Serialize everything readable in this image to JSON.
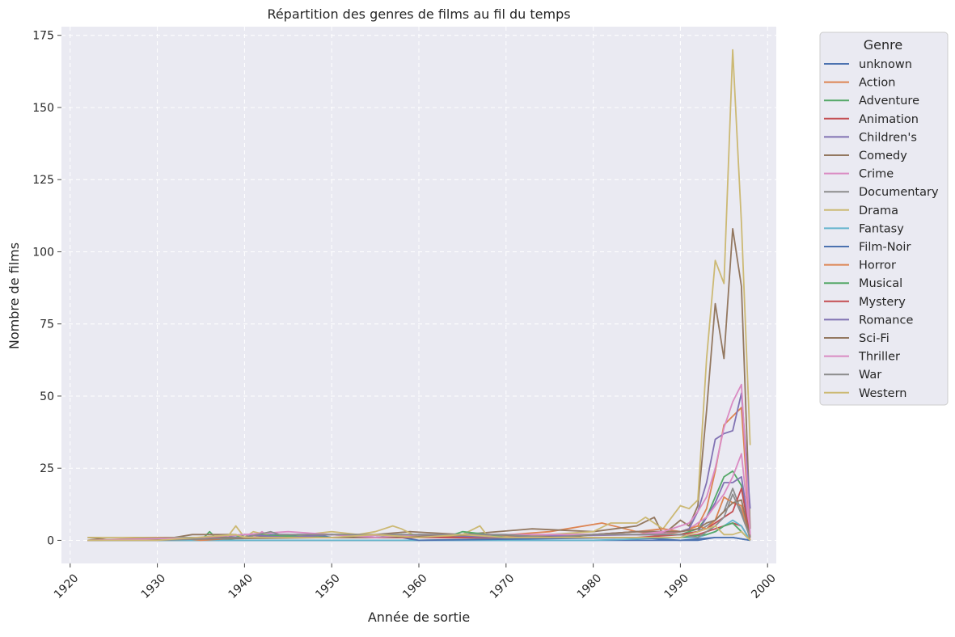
{
  "chart_data": {
    "type": "line",
    "title": "Répartition des genres de films au fil du temps",
    "xlabel": "Année de sortie",
    "ylabel": "Nombre de films",
    "xlim": [
      1919,
      2001
    ],
    "ylim": [
      -8,
      178
    ],
    "x_ticks": [
      1920,
      1930,
      1940,
      1950,
      1960,
      1970,
      1980,
      1990,
      2000
    ],
    "y_ticks": [
      0,
      25,
      50,
      75,
      100,
      125,
      150,
      175
    ],
    "x_tick_rotation": 45,
    "grid": true,
    "grid_style": "dashed",
    "background": "#EAEAF2",
    "legend_title": "Genre",
    "legend_position": "outside-upper-right",
    "series": [
      {
        "name": "unknown",
        "color": "#4C72B0",
        "x": [
          1922,
          1990,
          1992,
          1994,
          1996,
          1998
        ],
        "y": [
          0,
          0,
          0,
          1,
          1,
          0
        ]
      },
      {
        "name": "Action",
        "color": "#DD8452",
        "x": [
          1922,
          1940,
          1950,
          1957,
          1966,
          1975,
          1981,
          1985,
          1988,
          1990,
          1991,
          1992,
          1993,
          1994,
          1995,
          1996,
          1997,
          1998
        ],
        "y": [
          0,
          1,
          1,
          1,
          1,
          3,
          6,
          3,
          2,
          3,
          4,
          5,
          11,
          24,
          40,
          43,
          46,
          1
        ]
      },
      {
        "name": "Adventure",
        "color": "#55A868",
        "x": [
          1922,
          1935,
          1936,
          1937,
          1940,
          1955,
          1977,
          1985,
          1988,
          1990,
          1991,
          1992,
          1993,
          1994,
          1995,
          1996,
          1997,
          1998
        ],
        "y": [
          0,
          0,
          3,
          0,
          1,
          1,
          2,
          2,
          2,
          2,
          3,
          4,
          8,
          15,
          22,
          24,
          19,
          1
        ]
      },
      {
        "name": "Animation",
        "color": "#C44E52",
        "x": [
          1922,
          1937,
          1940,
          1950,
          1955,
          1967,
          1985,
          1990,
          1992,
          1993,
          1994,
          1995,
          1996,
          1997,
          1998
        ],
        "y": [
          0,
          1,
          1,
          1,
          1,
          1,
          1,
          1,
          2,
          3,
          4,
          5,
          6,
          5,
          0
        ]
      },
      {
        "name": "Children's",
        "color": "#8172B3",
        "x": [
          1922,
          1937,
          1940,
          1945,
          1950,
          1964,
          1986,
          1990,
          1992,
          1993,
          1994,
          1995,
          1996,
          1997,
          1998
        ],
        "y": [
          0,
          1,
          2,
          2,
          1,
          1,
          2,
          2,
          3,
          8,
          13,
          20,
          20,
          22,
          2
        ]
      },
      {
        "name": "Comedy",
        "color": "#937860",
        "x": [
          1922,
          1925,
          1930,
          1934,
          1936,
          1939,
          1940,
          1950,
          1955,
          1959,
          1965,
          1973,
          1980,
          1985,
          1987,
          1988,
          1990,
          1991,
          1992,
          1993,
          1994,
          1995,
          1996,
          1997,
          1998
        ],
        "y": [
          1,
          0,
          0,
          2,
          2,
          2,
          1,
          2,
          2,
          3,
          2,
          4,
          3,
          5,
          8,
          2,
          7,
          5,
          12,
          45,
          82,
          63,
          108,
          88,
          4
        ]
      },
      {
        "name": "Crime",
        "color": "#DA8BC3",
        "x": [
          1922,
          1941,
          1942,
          1943,
          1950,
          1957,
          1961,
          1975,
          1985,
          1990,
          1991,
          1992,
          1993,
          1994,
          1995,
          1996,
          1997,
          1998
        ],
        "y": [
          0,
          1,
          3,
          1,
          1,
          2,
          1,
          2,
          2,
          3,
          4,
          6,
          8,
          12,
          16,
          22,
          30,
          1
        ]
      },
      {
        "name": "Documentary",
        "color": "#8C8C8C",
        "x": [
          1922,
          1960,
          1975,
          1985,
          1990,
          1992,
          1993,
          1994,
          1995,
          1996,
          1997,
          1998
        ],
        "y": [
          0,
          0,
          1,
          1,
          1,
          3,
          5,
          7,
          10,
          18,
          10,
          1
        ]
      },
      {
        "name": "Drama",
        "color": "#CCB974",
        "x": [
          1922,
          1925,
          1930,
          1937,
          1938,
          1939,
          1940,
          1941,
          1944,
          1950,
          1953,
          1955,
          1957,
          1958,
          1960,
          1965,
          1967,
          1968,
          1975,
          1980,
          1982,
          1985,
          1986,
          1988,
          1989,
          1990,
          1991,
          1992,
          1993,
          1994,
          1995,
          1996,
          1997,
          1998
        ],
        "y": [
          1,
          1,
          1,
          1,
          1,
          5,
          1,
          3,
          1,
          3,
          2,
          3,
          5,
          4,
          1,
          2,
          5,
          1,
          2,
          3,
          6,
          6,
          8,
          4,
          8,
          12,
          11,
          14,
          63,
          97,
          89,
          170,
          110,
          33
        ]
      },
      {
        "name": "Fantasy",
        "color": "#64B5CD",
        "x": [
          1922,
          1940,
          1960,
          1980,
          1990,
          1992,
          1993,
          1994,
          1995,
          1996,
          1997,
          1998
        ],
        "y": [
          0,
          0,
          0,
          0,
          1,
          1,
          2,
          3,
          5,
          7,
          5,
          0
        ]
      },
      {
        "name": "Film-Noir",
        "color": "#4C72B0",
        "x": [
          1922,
          1940,
          1944,
          1946,
          1948,
          1950,
          1955,
          1958,
          1960,
          1985,
          1990,
          1994,
          1996,
          1998
        ],
        "y": [
          0,
          1,
          1,
          2,
          2,
          1,
          1,
          1,
          0,
          1,
          0,
          1,
          1,
          0
        ]
      },
      {
        "name": "Horror",
        "color": "#DD8452",
        "x": [
          1922,
          1931,
          1932,
          1935,
          1940,
          1960,
          1968,
          1975,
          1980,
          1985,
          1988,
          1990,
          1992,
          1993,
          1994,
          1995,
          1996,
          1997,
          1998
        ],
        "y": [
          0,
          1,
          1,
          0,
          1,
          1,
          2,
          1,
          2,
          3,
          4,
          3,
          5,
          4,
          7,
          15,
          13,
          12,
          0
        ]
      },
      {
        "name": "Musical",
        "color": "#55A868",
        "x": [
          1922,
          1933,
          1936,
          1939,
          1940,
          1950,
          1955,
          1958,
          1960,
          1964,
          1965,
          1968,
          1970,
          1985,
          1990,
          1993,
          1994,
          1995,
          1996,
          1997,
          1998
        ],
        "y": [
          0,
          1,
          1,
          1,
          2,
          1,
          1,
          2,
          1,
          2,
          3,
          2,
          1,
          1,
          1,
          2,
          3,
          5,
          6,
          3,
          0
        ]
      },
      {
        "name": "Mystery",
        "color": "#C44E52",
        "x": [
          1922,
          1940,
          1950,
          1960,
          1975,
          1985,
          1990,
          1992,
          1993,
          1994,
          1995,
          1996,
          1997,
          1998
        ],
        "y": [
          0,
          1,
          1,
          1,
          1,
          1,
          2,
          3,
          4,
          6,
          8,
          10,
          18,
          1
        ]
      },
      {
        "name": "Romance",
        "color": "#8172B3",
        "x": [
          1922,
          1930,
          1935,
          1940,
          1945,
          1950,
          1955,
          1960,
          1970,
          1980,
          1985,
          1990,
          1991,
          1992,
          1993,
          1994,
          1995,
          1996,
          1997,
          1998
        ],
        "y": [
          0,
          0,
          1,
          2,
          1,
          2,
          1,
          2,
          1,
          2,
          3,
          3,
          4,
          10,
          20,
          35,
          37,
          38,
          51,
          11
        ]
      },
      {
        "name": "Sci-Fi",
        "color": "#937860",
        "x": [
          1922,
          1950,
          1955,
          1968,
          1977,
          1980,
          1985,
          1990,
          1992,
          1993,
          1994,
          1995,
          1996,
          1997,
          1998
        ],
        "y": [
          0,
          1,
          1,
          2,
          1,
          2,
          3,
          3,
          4,
          6,
          7,
          10,
          13,
          14,
          1
        ]
      },
      {
        "name": "Thriller",
        "color": "#DA8BC3",
        "x": [
          1922,
          1935,
          1940,
          1945,
          1950,
          1955,
          1960,
          1970,
          1980,
          1985,
          1988,
          1990,
          1991,
          1992,
          1993,
          1994,
          1995,
          1996,
          1997,
          1998
        ],
        "y": [
          0,
          1,
          2,
          3,
          2,
          1,
          2,
          2,
          2,
          2,
          3,
          5,
          6,
          10,
          15,
          25,
          39,
          48,
          54,
          2
        ]
      },
      {
        "name": "War",
        "color": "#8C8C8C",
        "x": [
          1922,
          1930,
          1940,
          1943,
          1944,
          1950,
          1957,
          1960,
          1965,
          1970,
          1975,
          1980,
          1985,
          1990,
          1992,
          1993,
          1994,
          1995,
          1996,
          1997,
          1998
        ],
        "y": [
          0,
          0,
          1,
          3,
          2,
          2,
          2,
          2,
          2,
          2,
          1,
          2,
          2,
          2,
          1,
          3,
          5,
          8,
          16,
          9,
          1
        ]
      },
      {
        "name": "Western",
        "color": "#CCB974",
        "x": [
          1922,
          1930,
          1939,
          1940,
          1950,
          1955,
          1960,
          1965,
          1970,
          1980,
          1985,
          1990,
          1992,
          1993,
          1994,
          1995,
          1996,
          1997,
          1998
        ],
        "y": [
          0,
          0,
          2,
          1,
          1,
          2,
          1,
          2,
          1,
          1,
          1,
          1,
          3,
          4,
          5,
          2,
          2,
          3,
          0
        ]
      }
    ]
  }
}
